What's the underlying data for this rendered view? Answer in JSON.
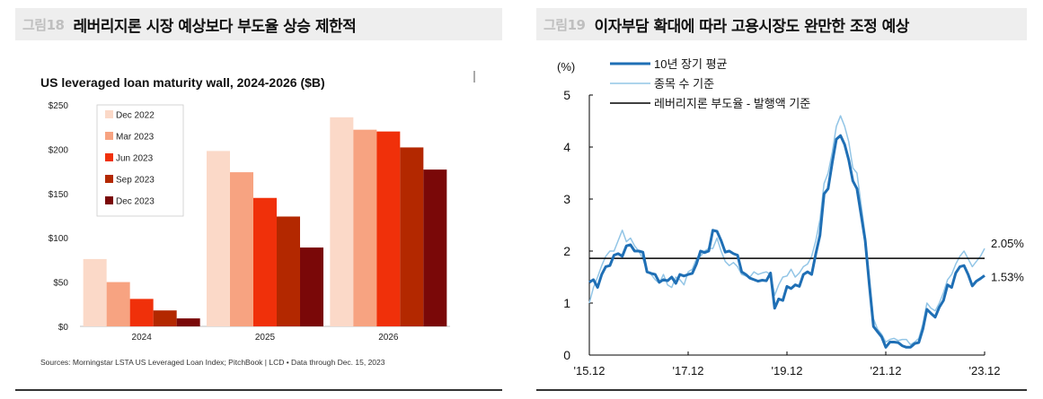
{
  "figures": [
    {
      "number": "그림18",
      "title": "레버리지론 시장 예상보다 부도율 상승 제한적"
    },
    {
      "number": "그림19",
      "title": "이자부담 확대에 따라 고용시장도 완만한 조정 예상"
    }
  ],
  "chart_data": [
    {
      "type": "bar",
      "title": "US leveraged loan maturity wall, 2024-2026 ($B)",
      "categories": [
        "2024",
        "2025",
        "2026"
      ],
      "series": [
        {
          "name": "Dec 2022",
          "values": [
            76,
            198,
            236
          ],
          "color": "#fbd9c8"
        },
        {
          "name": "Mar 2023",
          "values": [
            50,
            174,
            222
          ],
          "color": "#f7a381"
        },
        {
          "name": "Jun 2023",
          "values": [
            31,
            145,
            220
          ],
          "color": "#f0300a"
        },
        {
          "name": "Sep 2023",
          "values": [
            18,
            124,
            202
          ],
          "color": "#b32800"
        },
        {
          "name": "Dec 2023",
          "values": [
            9,
            89,
            177
          ],
          "color": "#7a0808"
        }
      ],
      "ylim": [
        0,
        250
      ],
      "yticks": [
        "$0",
        "$50",
        "$100",
        "$150",
        "$200",
        "$250"
      ],
      "legend": "top-left",
      "grid": false,
      "source": "Sources: Morningstar LSTA US Leveraged Loan Index; PitchBook | LCD • Data through Dec. 15, 2023"
    },
    {
      "type": "line",
      "ylabel": "(%)",
      "ylim": [
        0,
        5
      ],
      "yticks": [
        "0",
        "1",
        "2",
        "3",
        "4",
        "5"
      ],
      "xticks": [
        "'15.12",
        "'17.12",
        "'19.12",
        "'21.12",
        "'23.12"
      ],
      "xrange": [
        "2015-12",
        "2023-12"
      ],
      "legend": "top-left",
      "series": [
        {
          "name": "10년 장기 평균",
          "color": "#1f6fb5",
          "dates": [
            "2015-12",
            "2016-01",
            "2016-02",
            "2016-03",
            "2016-04",
            "2016-05",
            "2016-06",
            "2016-07",
            "2016-08",
            "2016-09",
            "2016-10",
            "2016-11",
            "2016-12",
            "2017-01",
            "2017-02",
            "2017-03",
            "2017-04",
            "2017-05",
            "2017-06",
            "2017-07",
            "2017-08",
            "2017-09",
            "2017-10",
            "2017-11",
            "2017-12",
            "2018-01",
            "2018-02",
            "2018-03",
            "2018-04",
            "2018-05",
            "2018-06",
            "2018-07",
            "2018-08",
            "2018-09",
            "2018-10",
            "2018-11",
            "2018-12",
            "2019-01",
            "2019-02",
            "2019-03",
            "2019-04",
            "2019-05",
            "2019-06",
            "2019-07",
            "2019-08",
            "2019-09",
            "2019-10",
            "2019-11",
            "2019-12",
            "2020-01",
            "2020-02",
            "2020-03",
            "2020-04",
            "2020-05",
            "2020-06",
            "2020-07",
            "2020-08",
            "2020-09",
            "2020-10",
            "2020-11",
            "2020-12",
            "2021-01",
            "2021-02",
            "2021-03",
            "2021-04",
            "2021-05",
            "2021-06",
            "2021-07",
            "2021-08",
            "2021-09",
            "2021-10",
            "2021-11",
            "2021-12",
            "2022-01",
            "2022-02",
            "2022-03",
            "2022-04",
            "2022-05",
            "2022-06",
            "2022-07",
            "2022-08",
            "2022-09",
            "2022-10",
            "2022-11",
            "2022-12",
            "2023-01",
            "2023-02",
            "2023-03",
            "2023-04",
            "2023-05",
            "2023-06",
            "2023-07",
            "2023-08",
            "2023-09",
            "2023-10",
            "2023-11",
            "2023-12"
          ],
          "values": [
            1.4,
            1.45,
            1.3,
            1.55,
            1.7,
            1.72,
            1.92,
            1.95,
            1.9,
            2.1,
            2.12,
            2.0,
            2.0,
            1.98,
            1.6,
            1.57,
            1.55,
            1.4,
            1.45,
            1.43,
            1.5,
            1.38,
            1.55,
            1.52,
            1.55,
            1.57,
            1.75,
            2.0,
            1.97,
            2.0,
            2.4,
            2.38,
            2.2,
            1.98,
            2.0,
            1.95,
            1.92,
            1.6,
            1.55,
            1.48,
            1.45,
            1.42,
            1.44,
            1.43,
            1.58,
            0.9,
            1.08,
            1.05,
            1.32,
            1.28,
            1.35,
            1.32,
            1.55,
            1.6,
            1.55,
            1.95,
            2.3,
            3.1,
            3.2,
            3.7,
            4.15,
            4.22,
            4.05,
            3.75,
            3.35,
            3.2,
            2.7,
            2.2,
            1.35,
            0.55,
            0.45,
            0.35,
            0.15,
            0.25,
            0.25,
            0.24,
            0.18,
            0.15,
            0.15,
            0.22,
            0.24,
            0.5,
            0.88,
            0.8,
            0.73,
            0.92,
            1.05,
            1.35,
            1.3,
            1.58,
            1.7,
            1.72,
            1.55,
            1.33,
            1.42,
            1.47,
            1.53
          ],
          "end_label": "1.53%"
        },
        {
          "name": "종목 수 기준",
          "color": "#92c5e6",
          "dates": [
            "2015-12",
            "2016-01",
            "2016-02",
            "2016-03",
            "2016-04",
            "2016-05",
            "2016-06",
            "2016-07",
            "2016-08",
            "2016-09",
            "2016-10",
            "2016-11",
            "2016-12",
            "2017-01",
            "2017-02",
            "2017-03",
            "2017-04",
            "2017-05",
            "2017-06",
            "2017-07",
            "2017-08",
            "2017-09",
            "2017-10",
            "2017-11",
            "2017-12",
            "2018-01",
            "2018-02",
            "2018-03",
            "2018-04",
            "2018-05",
            "2018-06",
            "2018-07",
            "2018-08",
            "2018-09",
            "2018-10",
            "2018-11",
            "2018-12",
            "2019-01",
            "2019-02",
            "2019-03",
            "2019-04",
            "2019-05",
            "2019-06",
            "2019-07",
            "2019-08",
            "2019-09",
            "2019-10",
            "2019-11",
            "2019-12",
            "2020-01",
            "2020-02",
            "2020-03",
            "2020-04",
            "2020-05",
            "2020-06",
            "2020-07",
            "2020-08",
            "2020-09",
            "2020-10",
            "2020-11",
            "2020-12",
            "2021-01",
            "2021-02",
            "2021-03",
            "2021-04",
            "2021-05",
            "2021-06",
            "2021-07",
            "2021-08",
            "2021-09",
            "2021-10",
            "2021-11",
            "2021-12",
            "2022-01",
            "2022-02",
            "2022-03",
            "2022-04",
            "2022-05",
            "2022-06",
            "2022-07",
            "2022-08",
            "2022-09",
            "2022-10",
            "2022-11",
            "2022-12",
            "2023-01",
            "2023-02",
            "2023-03",
            "2023-04",
            "2023-05",
            "2023-06",
            "2023-07",
            "2023-08",
            "2023-09",
            "2023-10",
            "2023-11",
            "2023-12"
          ],
          "values": [
            1.0,
            1.3,
            1.5,
            1.72,
            1.9,
            2.0,
            2.0,
            2.2,
            2.4,
            2.18,
            2.25,
            2.1,
            2.0,
            1.85,
            1.62,
            1.55,
            1.45,
            1.38,
            1.55,
            1.35,
            1.3,
            1.5,
            1.45,
            1.35,
            1.6,
            1.65,
            1.85,
            1.9,
            2.0,
            2.05,
            2.05,
            2.25,
            2.0,
            1.8,
            1.72,
            1.78,
            1.7,
            1.55,
            1.52,
            1.5,
            1.6,
            1.55,
            1.58,
            1.6,
            1.55,
            1.15,
            1.35,
            1.5,
            1.52,
            1.65,
            1.5,
            1.58,
            1.7,
            1.75,
            1.9,
            2.2,
            2.6,
            3.3,
            3.5,
            3.9,
            4.4,
            4.6,
            4.4,
            4.1,
            3.6,
            3.5,
            2.9,
            2.3,
            1.5,
            0.7,
            0.5,
            0.4,
            0.25,
            0.3,
            0.32,
            0.28,
            0.3,
            0.3,
            0.2,
            0.25,
            0.32,
            0.6,
            1.0,
            0.9,
            0.85,
            1.0,
            1.2,
            1.45,
            1.55,
            1.75,
            1.9,
            2.0,
            1.85,
            1.7,
            1.8,
            1.9,
            2.05
          ],
          "end_label": "2.05%"
        },
        {
          "name": "레버리지론  부도율 - 발행액 기준",
          "color": "#000000",
          "constant": 1.86
        }
      ]
    }
  ]
}
